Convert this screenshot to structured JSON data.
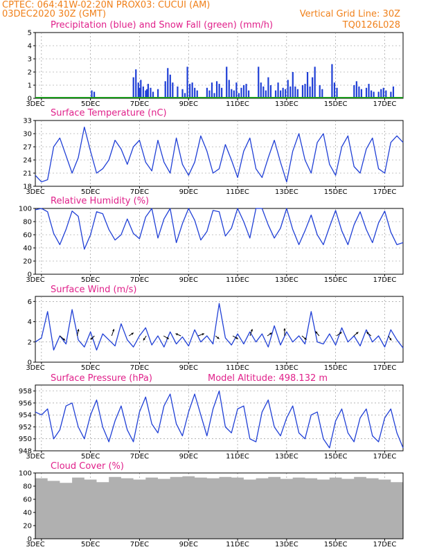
{
  "header": {
    "line1_left": "CPTEC:   064:41W-02:20N   PROX03: CUCUI (AM)",
    "line2_left": "03DEC2020 30Z (GMT)",
    "line2_right": "Vertical Grid Line: 30Z",
    "station_code": "TQ0126L028"
  },
  "colors": {
    "header": "#f0801a",
    "title": "#e0208a",
    "series": "#1f3fd6",
    "snow": "#1a9a1a",
    "cloud": "#b0b0b0",
    "grid": "#888888"
  },
  "x_axis": {
    "days": 15,
    "tick_labels": [
      "3DEC",
      "5DEC",
      "7DEC",
      "9DEC",
      "11DEC",
      "13DEC",
      "15DEC",
      "17DEC"
    ],
    "tick_day_offsets": [
      0,
      2,
      4,
      6,
      8,
      10,
      12,
      14
    ]
  },
  "panels": {
    "precip": {
      "title": "Precipitation (blue) and Snow Fall (green) (mm/h)",
      "y_ticks": [
        "0",
        "1",
        "2",
        "3",
        "4",
        "5"
      ]
    },
    "temp": {
      "title": "Surface Temperature (nC)",
      "y_ticks": [
        "18",
        "21",
        "24",
        "27",
        "30",
        "33"
      ]
    },
    "rh": {
      "title": "Relative Humidity (%)",
      "y_ticks": [
        "0",
        "20",
        "40",
        "60",
        "80",
        "100"
      ]
    },
    "wind": {
      "title": "Surface Wind (m/s)",
      "y_ticks": [
        "0",
        "2",
        "4",
        "6"
      ]
    },
    "press": {
      "title": "Surface Pressure (hPa)",
      "subtitle": "Model Altitude: 498.132 m",
      "y_ticks": [
        "948",
        "950",
        "952",
        "954",
        "956",
        "958"
      ]
    },
    "cloud": {
      "title": "Cloud Cover (%)",
      "y_ticks": [
        "0",
        "20",
        "40",
        "60",
        "80",
        "100"
      ]
    }
  },
  "chart_data": [
    {
      "type": "bar",
      "title": "Precipitation (blue) and Snow Fall (green) (mm/h)",
      "ylim": [
        0,
        5
      ],
      "x_unit": "days since 03DEC 00Z",
      "x": [
        2.3,
        2.4,
        4.0,
        4.1,
        4.2,
        4.25,
        4.3,
        4.4,
        4.5,
        4.55,
        4.6,
        4.7,
        4.8,
        5.0,
        5.3,
        5.4,
        5.5,
        5.6,
        5.8,
        6.0,
        6.1,
        6.2,
        6.3,
        6.4,
        6.5,
        6.6,
        7.0,
        7.1,
        7.2,
        7.3,
        7.4,
        7.5,
        7.6,
        7.8,
        7.9,
        8.0,
        8.1,
        8.2,
        8.3,
        8.4,
        8.5,
        8.6,
        8.7,
        9.1,
        9.2,
        9.3,
        9.4,
        9.5,
        9.6,
        9.8,
        9.9,
        10.0,
        10.1,
        10.2,
        10.3,
        10.4,
        10.5,
        10.6,
        10.7,
        10.9,
        11.0,
        11.1,
        11.2,
        11.3,
        11.4,
        11.6,
        11.7,
        12.1,
        12.2,
        12.3,
        13.0,
        13.1,
        13.2,
        13.3,
        13.5,
        13.6,
        13.7,
        13.8,
        14.0,
        14.1,
        14.2,
        14.3,
        14.5,
        14.6
      ],
      "values": [
        0.6,
        0.5,
        1.6,
        2.2,
        1.2,
        0.8,
        1.4,
        0.9,
        0.6,
        0.7,
        1.1,
        0.8,
        0.5,
        0.7,
        1.3,
        2.3,
        1.8,
        1.2,
        0.9,
        0.7,
        0.4,
        2.4,
        1.1,
        1.2,
        0.8,
        0.6,
        0.8,
        0.6,
        1.2,
        0.4,
        1.3,
        1.1,
        0.8,
        2.4,
        1.4,
        0.7,
        0.6,
        1.2,
        0.4,
        0.8,
        1.0,
        1.1,
        0.6,
        2.4,
        1.2,
        0.9,
        0.6,
        1.6,
        1.0,
        0.6,
        1.2,
        0.6,
        0.8,
        0.7,
        1.4,
        0.9,
        2.0,
        0.9,
        0.7,
        1.0,
        1.1,
        2.0,
        0.9,
        1.6,
        2.4,
        1.0,
        0.7,
        2.6,
        1.2,
        0.8,
        1.0,
        1.3,
        0.9,
        0.7,
        0.8,
        1.1,
        0.6,
        0.5,
        0.5,
        0.7,
        0.8,
        0.6,
        0.5,
        0.9
      ],
      "snow_values_all_zero": true
    },
    {
      "type": "line",
      "title": "Surface Temperature (nC)",
      "ylim": [
        18,
        33
      ],
      "x_unit": "days since 03DEC 00Z",
      "x": [
        0,
        0.25,
        0.5,
        0.75,
        1.0,
        1.25,
        1.5,
        1.75,
        2.0,
        2.25,
        2.5,
        2.75,
        3.0,
        3.25,
        3.5,
        3.75,
        4.0,
        4.25,
        4.5,
        4.75,
        5.0,
        5.25,
        5.5,
        5.75,
        6.0,
        6.25,
        6.5,
        6.75,
        7.0,
        7.25,
        7.5,
        7.75,
        8.0,
        8.25,
        8.5,
        8.75,
        9.0,
        9.25,
        9.5,
        9.75,
        10.0,
        10.25,
        10.5,
        10.75,
        11.0,
        11.25,
        11.5,
        11.75,
        12.0,
        12.25,
        12.5,
        12.75,
        13.0,
        13.25,
        13.5,
        13.75,
        14.0,
        14.25,
        14.5,
        14.75,
        15.0
      ],
      "values": [
        20.5,
        19.0,
        19.5,
        27.0,
        29.0,
        25.0,
        21.0,
        24.5,
        31.5,
        26.0,
        21.0,
        22.0,
        24.0,
        28.5,
        26.5,
        23.0,
        27.0,
        28.5,
        23.5,
        21.5,
        28.5,
        23.5,
        21.0,
        29.0,
        23.0,
        20.5,
        23.5,
        29.5,
        26.0,
        21.0,
        22.0,
        27.5,
        24.0,
        20.0,
        26.0,
        29.0,
        22.0,
        20.0,
        24.5,
        28.5,
        23.5,
        19.0,
        26.0,
        30.0,
        24.0,
        21.0,
        28.0,
        30.0,
        23.0,
        20.5,
        27.0,
        29.5,
        22.5,
        21.0,
        26.5,
        29.0,
        22.0,
        21.0,
        28.0,
        29.5,
        28.0
      ]
    },
    {
      "type": "line",
      "title": "Relative Humidity (%)",
      "ylim": [
        0,
        100
      ],
      "x_unit": "days since 03DEC 00Z",
      "x": [
        0,
        0.25,
        0.5,
        0.75,
        1.0,
        1.25,
        1.5,
        1.75,
        2.0,
        2.25,
        2.5,
        2.75,
        3.0,
        3.25,
        3.5,
        3.75,
        4.0,
        4.25,
        4.5,
        4.75,
        5.0,
        5.25,
        5.5,
        5.75,
        6.0,
        6.25,
        6.5,
        6.75,
        7.0,
        7.25,
        7.5,
        7.75,
        8.0,
        8.25,
        8.5,
        8.75,
        9.0,
        9.25,
        9.5,
        9.75,
        10.0,
        10.25,
        10.5,
        10.75,
        11.0,
        11.25,
        11.5,
        11.75,
        12.0,
        12.25,
        12.5,
        12.75,
        13.0,
        13.25,
        13.5,
        13.75,
        14.0,
        14.25,
        14.5,
        14.75,
        15.0
      ],
      "values": [
        98,
        100,
        95,
        62,
        45,
        68,
        96,
        88,
        38,
        60,
        95,
        92,
        68,
        52,
        60,
        84,
        62,
        54,
        87,
        100,
        55,
        84,
        100,
        48,
        77,
        100,
        82,
        52,
        65,
        97,
        95,
        58,
        70,
        100,
        80,
        55,
        100,
        100,
        75,
        55,
        70,
        100,
        68,
        45,
        66,
        90,
        60,
        45,
        72,
        97,
        66,
        45,
        75,
        95,
        68,
        48,
        78,
        96,
        64,
        45,
        48
      ]
    },
    {
      "type": "line",
      "title": "Surface Wind (m/s)",
      "ylim": [
        0,
        6.5
      ],
      "x_unit": "days since 03DEC 00Z",
      "x": [
        0,
        0.25,
        0.5,
        0.75,
        1.0,
        1.25,
        1.5,
        1.75,
        2.0,
        2.25,
        2.5,
        2.75,
        3.0,
        3.25,
        3.5,
        3.75,
        4.0,
        4.25,
        4.5,
        4.75,
        5.0,
        5.25,
        5.5,
        5.75,
        6.0,
        6.25,
        6.5,
        6.75,
        7.0,
        7.25,
        7.5,
        7.75,
        8.0,
        8.25,
        8.5,
        8.75,
        9.0,
        9.25,
        9.5,
        9.75,
        10.0,
        10.25,
        10.5,
        10.75,
        11.0,
        11.25,
        11.5,
        11.75,
        12.0,
        12.25,
        12.5,
        12.75,
        13.0,
        13.25,
        13.5,
        13.75,
        14.0,
        14.25,
        14.5,
        14.75,
        15.0
      ],
      "values": [
        2.0,
        2.4,
        5.0,
        1.2,
        2.6,
        1.8,
        5.2,
        2.2,
        1.5,
        3.0,
        1.2,
        2.8,
        2.2,
        1.6,
        3.8,
        2.2,
        1.5,
        2.6,
        3.4,
        1.7,
        2.6,
        1.5,
        3.0,
        1.8,
        2.5,
        1.6,
        3.2,
        2.0,
        2.6,
        1.8,
        5.8,
        2.4,
        1.7,
        2.8,
        1.8,
        3.0,
        2.0,
        2.8,
        1.5,
        3.6,
        1.7,
        3.0,
        2.0,
        2.6,
        1.8,
        5.0,
        2.0,
        1.8,
        2.8,
        1.7,
        3.4,
        2.0,
        2.6,
        1.6,
        3.2,
        2.0,
        2.6,
        1.5,
        3.2,
        2.2,
        1.4
      ],
      "arrows_u_v": [
        [
          0.7,
          -0.6
        ],
        [
          0.2,
          0.9
        ],
        [
          -0.5,
          -0.5
        ],
        [
          0.3,
          0.9
        ],
        [
          0.6,
          0.4
        ],
        [
          -0.4,
          -0.6
        ],
        [
          0.7,
          -0.4
        ],
        [
          -0.7,
          0.3
        ],
        [
          0.8,
          0.3
        ],
        [
          0.5,
          -0.4
        ],
        [
          0.7,
          -0.4
        ],
        [
          0.3,
          0.9
        ],
        [
          0.6,
          0.4
        ],
        [
          0.0,
          1.0
        ],
        [
          0.6,
          -0.5
        ],
        [
          -0.5,
          0.6
        ],
        [
          0.7,
          0.5
        ],
        [
          0.6,
          0.5
        ],
        [
          -0.6,
          0.5
        ],
        [
          0.4,
          -0.6
        ]
      ]
    },
    {
      "type": "line",
      "title": "Surface Pressure (hPa)",
      "ylim": [
        948,
        959
      ],
      "x_unit": "days since 03DEC 00Z",
      "x": [
        0,
        0.25,
        0.5,
        0.75,
        1.0,
        1.25,
        1.5,
        1.75,
        2.0,
        2.25,
        2.5,
        2.75,
        3.0,
        3.25,
        3.5,
        3.75,
        4.0,
        4.25,
        4.5,
        4.75,
        5.0,
        5.25,
        5.5,
        5.75,
        6.0,
        6.25,
        6.5,
        6.75,
        7.0,
        7.25,
        7.5,
        7.75,
        8.0,
        8.25,
        8.5,
        8.75,
        9.0,
        9.25,
        9.5,
        9.75,
        10.0,
        10.25,
        10.5,
        10.75,
        11.0,
        11.25,
        11.5,
        11.75,
        12.0,
        12.25,
        12.5,
        12.75,
        13.0,
        13.25,
        13.5,
        13.75,
        14.0,
        14.25,
        14.5,
        14.75,
        15.0
      ],
      "values": [
        954.5,
        954.0,
        955.0,
        950.0,
        951.5,
        955.5,
        956.0,
        952.0,
        950.0,
        954.0,
        956.5,
        952.0,
        949.5,
        953.0,
        955.5,
        951.5,
        949.5,
        954.5,
        957.0,
        952.5,
        951.0,
        955.5,
        957.5,
        952.5,
        950.5,
        954.5,
        957.5,
        954.0,
        950.5,
        955.0,
        958.0,
        952.0,
        951.0,
        955.0,
        955.5,
        950.0,
        949.5,
        954.5,
        956.5,
        952.0,
        950.5,
        953.5,
        955.5,
        951.0,
        950.0,
        954.0,
        954.5,
        950.0,
        948.5,
        953.0,
        955.0,
        951.0,
        949.5,
        953.5,
        955.0,
        950.5,
        949.5,
        953.5,
        955.0,
        951.0,
        948.5
      ]
    },
    {
      "type": "bar",
      "title": "Cloud Cover (%)",
      "ylim": [
        0,
        100
      ],
      "x_unit": "days since 03DEC 00Z",
      "x": [
        0,
        0.5,
        1.0,
        1.5,
        2.0,
        2.5,
        3.0,
        3.5,
        4.0,
        4.5,
        5.0,
        5.5,
        6.0,
        6.5,
        7.0,
        7.5,
        8.0,
        8.5,
        9.0,
        9.5,
        10.0,
        10.5,
        11.0,
        11.5,
        12.0,
        12.5,
        13.0,
        13.5,
        14.0,
        14.5
      ],
      "values": [
        92,
        88,
        85,
        93,
        90,
        86,
        94,
        92,
        90,
        93,
        91,
        94,
        95,
        93,
        92,
        94,
        93,
        90,
        92,
        94,
        91,
        93,
        92,
        90,
        93,
        91,
        94,
        92,
        90,
        86
      ]
    }
  ]
}
